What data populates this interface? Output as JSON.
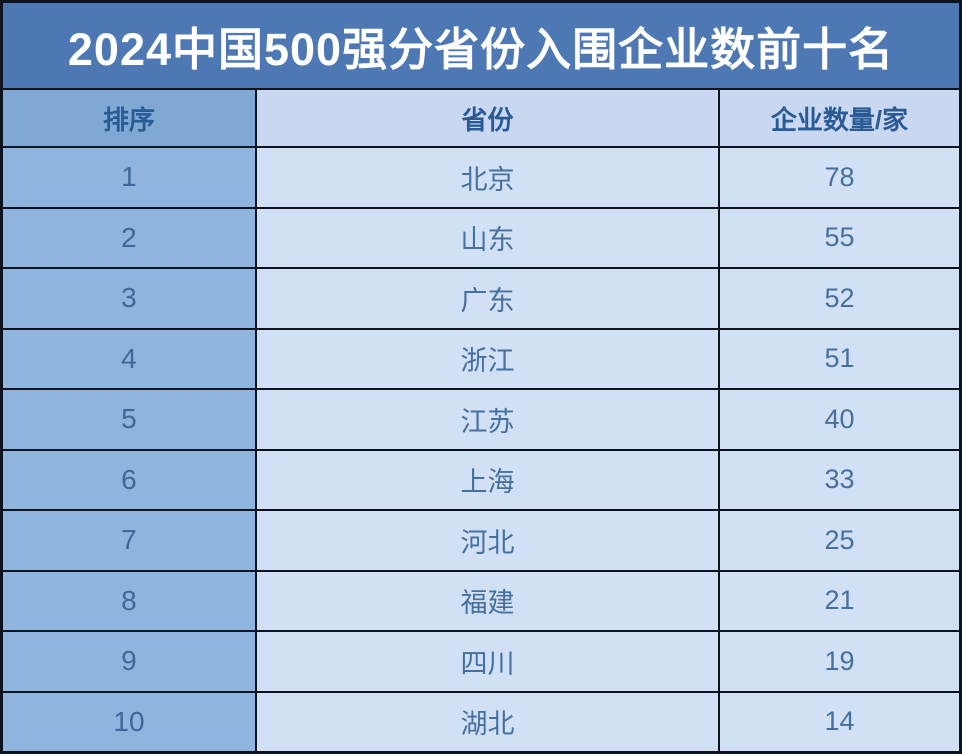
{
  "title": "2024中国500强分省份入围企业数前十名",
  "table": {
    "columns": [
      "排序",
      "省份",
      "企业数量/家"
    ],
    "rows": [
      {
        "rank": "1",
        "province": "北京",
        "count": "78"
      },
      {
        "rank": "2",
        "province": "山东",
        "count": "55"
      },
      {
        "rank": "3",
        "province": "广东",
        "count": "52"
      },
      {
        "rank": "4",
        "province": "浙江",
        "count": "51"
      },
      {
        "rank": "5",
        "province": "江苏",
        "count": "40"
      },
      {
        "rank": "6",
        "province": "上海",
        "count": "33"
      },
      {
        "rank": "7",
        "province": "河北",
        "count": "25"
      },
      {
        "rank": "8",
        "province": "福建",
        "count": "21"
      },
      {
        "rank": "9",
        "province": "四川",
        "count": "19"
      },
      {
        "rank": "10",
        "province": "湖北",
        "count": "14"
      }
    ]
  },
  "colors": {
    "title_bg": "#4d78b4",
    "title_text": "#ffffff",
    "header_rank_bg": "#7fa9d4",
    "header_bg": "#c9d8f0",
    "header_text": "#2b5b95",
    "rank_column_bg": "#8fb5de",
    "rank_text": "#3e6899",
    "data_cell_bg": "#d2e0f5",
    "data_text": "#45719f",
    "grid_border": "#0d1420"
  },
  "chart_data": {
    "type": "table",
    "title": "2024中国500强分省份入围企业数前十名",
    "columns": [
      "排序",
      "省份",
      "企业数量/家"
    ],
    "categories": [
      "北京",
      "山东",
      "广东",
      "浙江",
      "江苏",
      "上海",
      "河北",
      "福建",
      "四川",
      "湖北"
    ],
    "values": [
      78,
      55,
      52,
      51,
      40,
      33,
      25,
      21,
      19,
      14
    ],
    "layout": {
      "grid": "on",
      "header_row": true,
      "rank_column_highlight": true
    }
  }
}
